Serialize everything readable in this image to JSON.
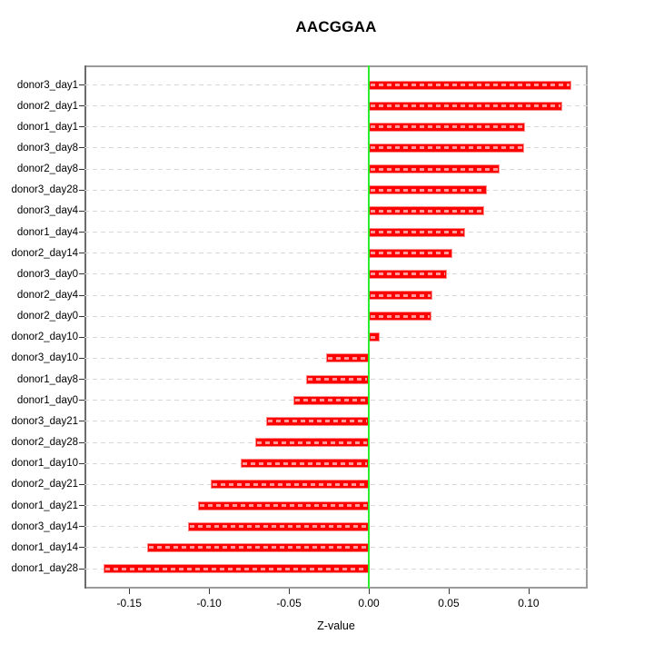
{
  "chart_data": {
    "type": "bar",
    "orientation": "horizontal",
    "title": "AACGGAA",
    "xlabel": "Z-value",
    "ylabel": "",
    "categories": [
      "donor3_day1",
      "donor2_day1",
      "donor1_day1",
      "donor3_day8",
      "donor2_day8",
      "donor3_day28",
      "donor3_day4",
      "donor1_day4",
      "donor2_day14",
      "donor3_day0",
      "donor2_day4",
      "donor2_day0",
      "donor2_day10",
      "donor3_day10",
      "donor1_day8",
      "donor1_day0",
      "donor3_day21",
      "donor2_day28",
      "donor1_day10",
      "donor2_day21",
      "donor1_day21",
      "donor3_day14",
      "donor1_day14",
      "donor1_day28"
    ],
    "values": [
      0.127,
      0.121,
      0.098,
      0.097,
      0.082,
      0.074,
      0.072,
      0.06,
      0.052,
      0.049,
      0.04,
      0.039,
      0.007,
      -0.027,
      -0.039,
      -0.047,
      -0.064,
      -0.071,
      -0.08,
      -0.099,
      -0.107,
      -0.113,
      -0.139,
      -0.166
    ],
    "xlim": [
      -0.178,
      0.137
    ],
    "xticks": [
      {
        "value": -0.15,
        "label": "-0.15"
      },
      {
        "value": -0.1,
        "label": "-0.10"
      },
      {
        "value": -0.05,
        "label": "-0.05"
      },
      {
        "value": 0.0,
        "label": "0.00"
      },
      {
        "value": 0.05,
        "label": "0.05"
      },
      {
        "value": 0.1,
        "label": "0.10"
      }
    ],
    "grid": true,
    "grid_style": "dashed",
    "legend": "none",
    "colors": {
      "bar": "#ff0000",
      "bar_inner_dash": "rgba(255,255,255,0.6)",
      "zero_line": "#2bee2b",
      "grid": "#d8d8d8",
      "box_border": "#9b9b9b",
      "tick": "#333333",
      "text": "#000000",
      "background": "#ffffff"
    }
  }
}
